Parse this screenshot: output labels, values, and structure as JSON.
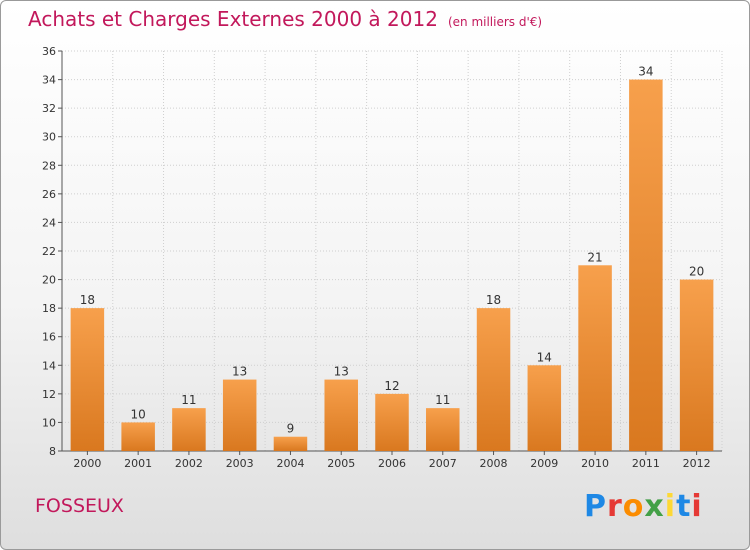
{
  "header": {
    "title": "Achats et Charges Externes 2000 à 2012",
    "unit": "(en milliers d'€)"
  },
  "footer": {
    "commune": "FOSSEUX",
    "logo": "Proxiti",
    "logo_colors": [
      "#1e88e5",
      "#e53935",
      "#fb8c00",
      "#43a047",
      "#fdd835",
      "#1e88e5",
      "#e53935"
    ]
  },
  "colors": {
    "bar_top": "#f7a04c",
    "bar_bottom": "#d9781f",
    "title": "#c2185b",
    "grid": "#cfcfcf"
  },
  "chart_data": {
    "type": "bar",
    "categories": [
      "2000",
      "2001",
      "2002",
      "2003",
      "2004",
      "2005",
      "2006",
      "2007",
      "2008",
      "2009",
      "2010",
      "2011",
      "2012"
    ],
    "values": [
      18,
      10,
      11,
      13,
      9,
      13,
      12,
      11,
      18,
      14,
      21,
      34,
      20
    ],
    "ylim": [
      8,
      36
    ],
    "yticks": [
      8,
      10,
      12,
      14,
      16,
      18,
      20,
      22,
      24,
      26,
      28,
      30,
      32,
      34,
      36
    ],
    "grid": true,
    "data_labels": true
  }
}
